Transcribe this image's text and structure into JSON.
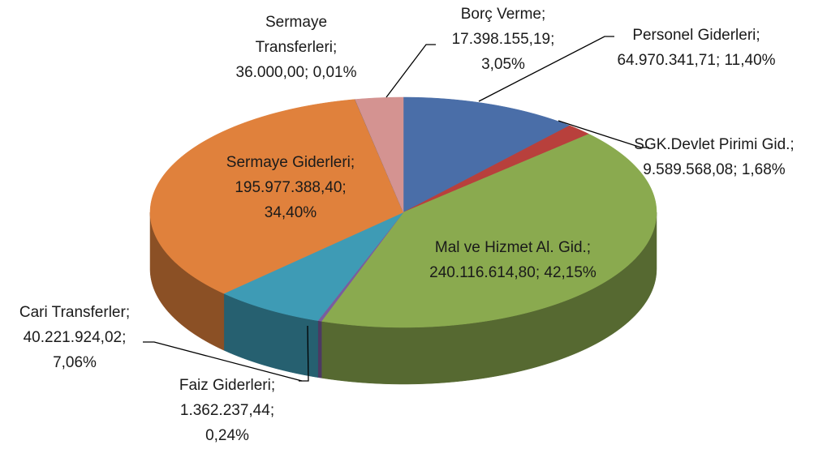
{
  "chart_data": {
    "type": "pie",
    "categories": [
      "Personel Giderleri",
      "SGK.Devlet Pirimi Gid.",
      "Mal ve Hizmet Al. Gid.",
      "Faiz Giderleri",
      "Cari Transferler",
      "Sermaye Giderleri",
      "Sermaye Transferleri",
      "Borç Verme"
    ],
    "values": [
      64970341.71,
      9589568.08,
      240116614.8,
      1362237.44,
      40221924.02,
      195977388.4,
      36000.0,
      17398155.19
    ],
    "value_labels": [
      "64.970.341,71",
      "9.589.568,08",
      "240.116.614,80",
      "1.362.237,44",
      "40.221.924,02",
      "195.977.388,40",
      "36.000,00",
      "17.398.155,19"
    ],
    "percents": [
      11.4,
      1.68,
      42.15,
      0.24,
      7.06,
      34.4,
      0.01,
      3.05
    ],
    "percent_labels": [
      "11,40%",
      "1,68%",
      "42,15%",
      "0,24%",
      "7,06%",
      "34,40%",
      "0,01%",
      "3,05%"
    ],
    "separator": "; ",
    "colors": [
      "#4a6ea8",
      "#b8403c",
      "#8aaa4f",
      "#7a5d9e",
      "#3e9bb5",
      "#e0813c",
      "#2f4f7a",
      "#d49391"
    ]
  }
}
